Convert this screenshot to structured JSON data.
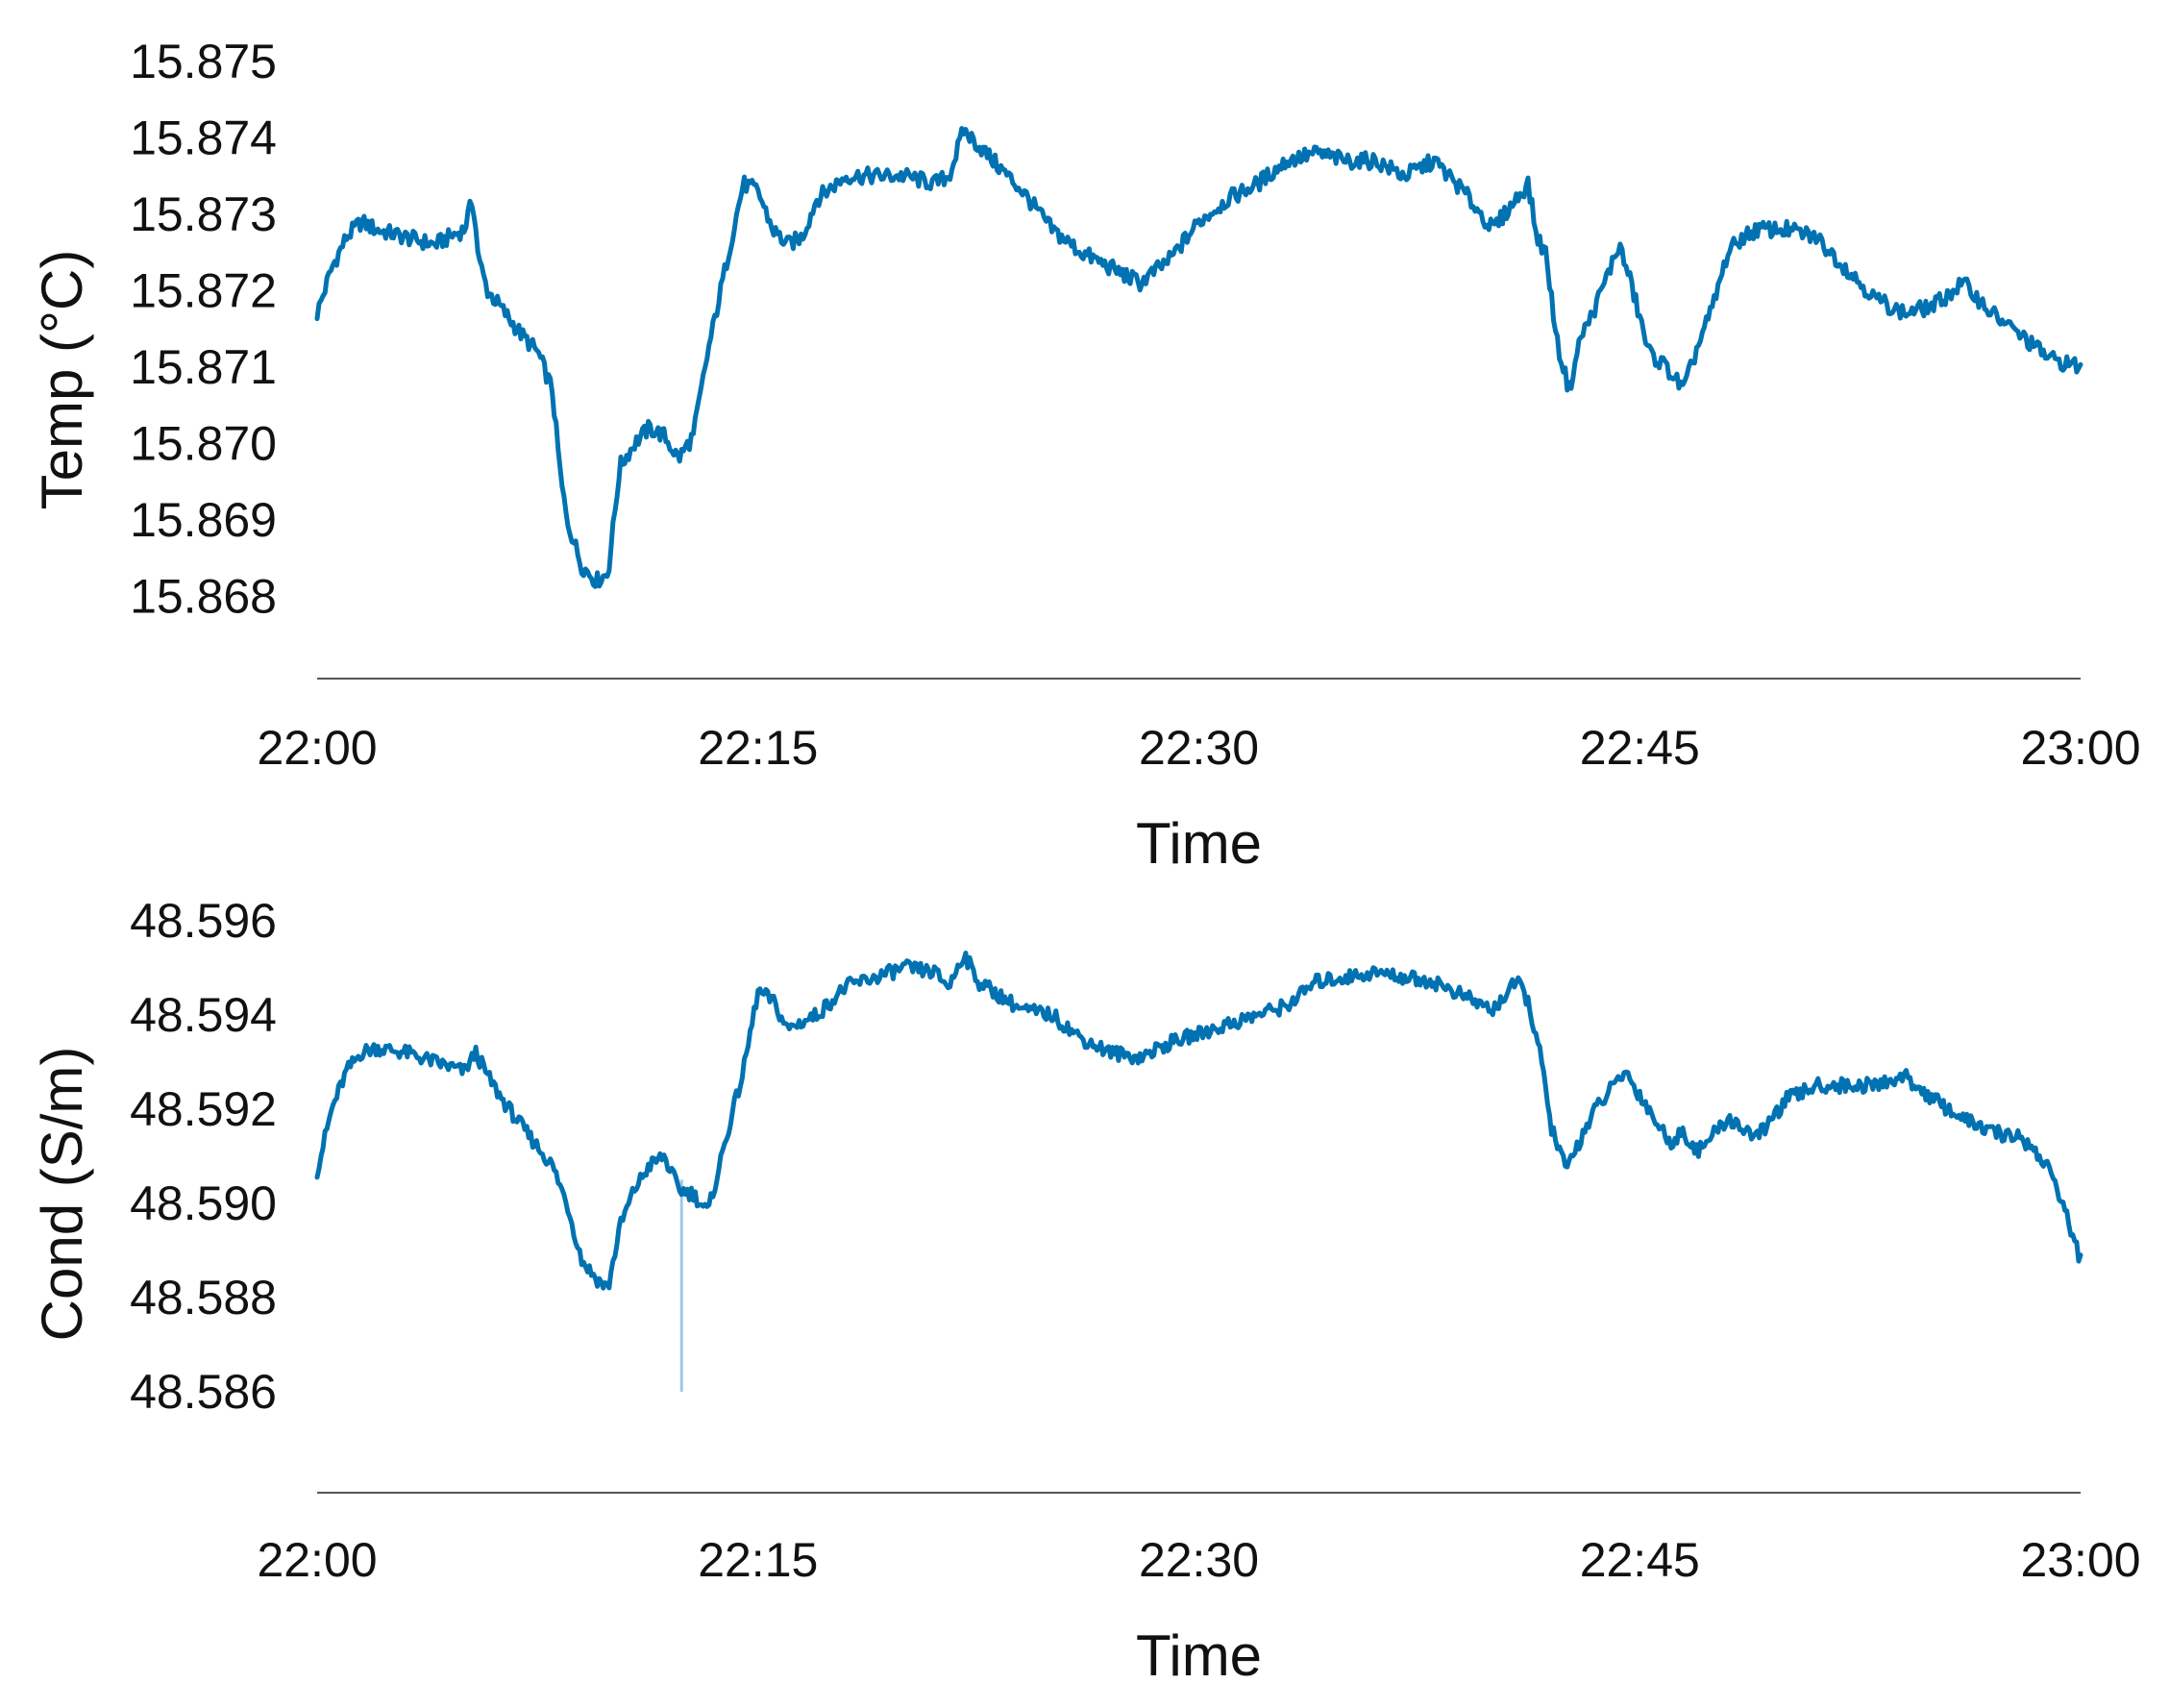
{
  "colors": {
    "line": "#0072B2",
    "spike": "#9ec9e6",
    "axis": "#555555",
    "text": "#111111"
  },
  "chart_data": [
    {
      "type": "line",
      "title": "",
      "xlabel": "Time",
      "ylabel": "Temp (°C)",
      "xticks": [
        "22:00",
        "22:15",
        "22:30",
        "22:45",
        "23:00"
      ],
      "xlim": [
        0,
        60
      ],
      "yticks": [
        "15.868",
        "15.869",
        "15.870",
        "15.871",
        "15.872",
        "15.873",
        "15.874",
        "15.875"
      ],
      "ylim": [
        15.8675,
        15.8752
      ],
      "grid": false,
      "legend": "none",
      "x_unit": "minutes after 22:00",
      "series": [
        {
          "x": [
            0,
            0.5,
            1,
            1.5,
            2,
            3,
            4,
            5,
            5.3,
            5.5,
            5.8,
            6.2,
            7,
            7.5,
            8,
            8.3,
            8.5,
            9,
            9.5,
            9.9,
            10.3,
            10.8,
            11.3,
            11.8,
            12.3,
            12.8,
            13.3,
            14,
            14.5,
            15,
            15.5,
            16,
            16.5,
            17,
            18,
            19,
            20,
            21,
            21.5,
            22,
            22.5,
            23,
            23.5,
            24,
            25,
            26,
            27,
            28,
            29,
            30,
            31,
            32,
            33,
            34,
            35,
            36,
            37,
            38,
            39,
            40,
            40.8,
            41.2,
            41.5,
            41.8,
            42.2,
            42.6,
            43,
            43.4,
            43.8,
            44.3,
            44.7,
            45.3,
            45.9,
            46.5,
            47,
            47.5,
            48,
            48.5,
            49,
            50,
            51,
            52,
            53,
            54,
            55,
            56,
            57,
            58,
            59,
            60
          ],
          "y": [
            15.8717,
            15.8723,
            15.8727,
            15.8729,
            15.8728,
            15.8727,
            15.8726,
            15.8728,
            15.8732,
            15.8724,
            15.872,
            15.8718,
            15.8714,
            15.8712,
            15.8707,
            15.8695,
            15.869,
            15.8684,
            15.8682,
            15.8683,
            15.8697,
            15.87,
            15.8702,
            15.8701,
            15.8698,
            15.8701,
            15.8712,
            15.8725,
            15.8734,
            15.8733,
            15.8728,
            15.8726,
            15.8727,
            15.8732,
            15.8735,
            15.8735,
            15.8735,
            15.8734,
            15.8735,
            15.8741,
            15.8739,
            15.8737,
            15.8735,
            15.8733,
            15.8728,
            15.8725,
            15.8723,
            15.8721,
            15.8724,
            15.8729,
            15.8732,
            15.8734,
            15.8737,
            15.8738,
            15.8737,
            15.8737,
            15.8735,
            15.8737,
            15.8733,
            15.8728,
            15.8732,
            15.8734,
            15.8727,
            15.8725,
            15.8713,
            15.8707,
            15.8714,
            15.8717,
            15.8721,
            15.8726,
            15.8721,
            15.8712,
            15.871,
            15.8707,
            15.8713,
            15.8718,
            15.8725,
            15.8727,
            15.8728,
            15.8728,
            15.8727,
            15.8723,
            15.8719,
            15.8717,
            15.8718,
            15.8721,
            15.8717,
            15.8714,
            15.8711,
            15.871
          ]
        }
      ]
    },
    {
      "type": "line",
      "title": "",
      "xlabel": "Time",
      "ylabel": "Cond (S/m)",
      "xticks": [
        "22:00",
        "22:15",
        "22:30",
        "22:45",
        "23:00"
      ],
      "xlim": [
        0,
        60
      ],
      "yticks": [
        "48.586",
        "48.588",
        "48.590",
        "48.592",
        "48.594",
        "48.596"
      ],
      "ylim": [
        48.585,
        48.5962
      ],
      "grid": false,
      "legend": "none",
      "x_unit": "minutes after 22:00",
      "spike": {
        "x": 12.4,
        "y_top": 48.5905,
        "y_bottom": 48.586
      },
      "series": [
        {
          "x": [
            0,
            0.5,
            1,
            1.5,
            2,
            3,
            4,
            5,
            5.4,
            5.8,
            6.3,
            7,
            7.5,
            8,
            8.5,
            9,
            9.5,
            9.9,
            10.3,
            10.8,
            11.3,
            11.8,
            12.3,
            12.8,
            13.3,
            14,
            14.5,
            15,
            15.5,
            16,
            17,
            18,
            19,
            20,
            21,
            21.5,
            22,
            22.5,
            23,
            24,
            25,
            26,
            27,
            28,
            29,
            30,
            31,
            32,
            33,
            34,
            35,
            36,
            37,
            38,
            39,
            40,
            40.8,
            41.2,
            41.6,
            42,
            42.5,
            43,
            43.5,
            44,
            44.5,
            45,
            45.5,
            46,
            46.5,
            47,
            48,
            49,
            50,
            51,
            52,
            53,
            54,
            55,
            56,
            57,
            58,
            59,
            60
          ],
          "y": [
            48.5907,
            48.592,
            48.5928,
            48.5932,
            48.5933,
            48.5932,
            48.593,
            48.5928,
            48.5932,
            48.5927,
            48.5922,
            48.5916,
            48.5912,
            48.5908,
            48.59,
            48.5888,
            48.5884,
            48.5882,
            48.5895,
            48.5903,
            48.5908,
            48.591,
            48.5903,
            48.5902,
            48.5898,
            48.5916,
            48.5928,
            48.5945,
            48.5943,
            48.5937,
            48.594,
            48.5946,
            48.5948,
            48.595,
            48.5949,
            48.5946,
            48.5953,
            48.5947,
            48.5945,
            48.5941,
            48.594,
            48.5935,
            48.5932,
            48.5931,
            48.5934,
            48.5936,
            48.5938,
            48.594,
            48.5942,
            48.5947,
            48.5948,
            48.5949,
            48.5948,
            48.5947,
            48.5944,
            48.5941,
            48.5947,
            48.5943,
            48.5932,
            48.5916,
            48.5907,
            48.5914,
            48.592,
            48.5924,
            48.5928,
            48.5923,
            48.5918,
            48.5913,
            48.5915,
            48.5911,
            48.5918,
            48.5914,
            48.5922,
            48.5925,
            48.5925,
            48.5925,
            48.5927,
            48.5922,
            48.5918,
            48.5915,
            48.5914,
            48.5907,
            48.5888
          ]
        }
      ]
    }
  ]
}
